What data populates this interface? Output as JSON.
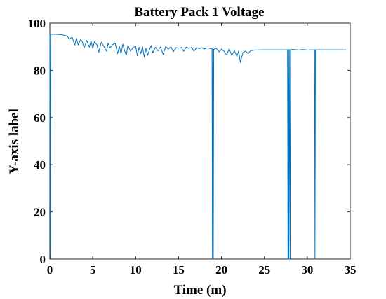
{
  "chart_data": {
    "type": "line",
    "title": "Battery Pack 1 Voltage",
    "xlabel": "Time (m)",
    "ylabel": "Y-axis label",
    "xlim": [
      0,
      35
    ],
    "ylim": [
      0,
      100
    ],
    "xticks": [
      0,
      5,
      10,
      15,
      20,
      25,
      30,
      35
    ],
    "yticks": [
      0,
      20,
      40,
      60,
      80,
      100
    ],
    "grid": false,
    "legend": "none",
    "series_color": "#0072BD",
    "series": [
      {
        "x": [
          0,
          0.05,
          0.1,
          0.5,
          1.0,
          1.5,
          2.0,
          2.3,
          2.6,
          2.9,
          3.1,
          3.3,
          3.6,
          3.8,
          4.0,
          4.3,
          4.6,
          4.8,
          5.0,
          5.2,
          5.5,
          5.7,
          6.0,
          6.3,
          6.6,
          6.8,
          7.0,
          7.3,
          7.6,
          7.9,
          8.1,
          8.3,
          8.5,
          8.7,
          8.9,
          9.1,
          9.4,
          9.7,
          10.0,
          10.2,
          10.4,
          10.6,
          10.8,
          11.0,
          11.2,
          11.4,
          11.6,
          11.8,
          12.0,
          12.3,
          12.6,
          12.9,
          13.2,
          13.5,
          13.8,
          14.1,
          14.4,
          14.7,
          15.0,
          15.3,
          15.6,
          15.9,
          16.2,
          16.5,
          16.8,
          17.1,
          17.4,
          17.7,
          18.0,
          18.3,
          18.6,
          18.9,
          18.95,
          19.0,
          19.05,
          19.1,
          19.4,
          19.7,
          20.0,
          20.3,
          20.6,
          20.9,
          21.2,
          21.5,
          21.8,
          22.0,
          22.2,
          22.5,
          22.8,
          23.1,
          23.4,
          23.7,
          24.0,
          25.0,
          26.0,
          27.0,
          27.7,
          27.75,
          27.8,
          27.85,
          27.9,
          28.0,
          28.05,
          28.1,
          28.5,
          29.0,
          29.5,
          30.0,
          30.5,
          30.85,
          30.9,
          30.95,
          31.0,
          32.0,
          33.0,
          34.0,
          34.5
        ],
        "y": [
          95.0,
          0,
          95.3,
          95.3,
          95.2,
          95.0,
          94.6,
          93.2,
          94.1,
          90.7,
          93.6,
          90.8,
          93.1,
          91.9,
          89.5,
          92.7,
          89.8,
          92.5,
          89.2,
          92.2,
          90.7,
          87.6,
          92.0,
          90.1,
          88.2,
          91.5,
          89.5,
          90.8,
          91.6,
          87.1,
          90.2,
          86.9,
          91.1,
          88.5,
          86.3,
          90.6,
          88.1,
          89.7,
          90.2,
          86.2,
          89.8,
          87.1,
          90.0,
          85.6,
          89.3,
          86.4,
          88.6,
          90.5,
          87.4,
          89.8,
          88.3,
          89.9,
          86.8,
          90.1,
          89.0,
          90.0,
          87.9,
          89.6,
          89.4,
          89.7,
          88.1,
          89.9,
          89.3,
          89.7,
          88.2,
          89.6,
          89.2,
          89.6,
          89.0,
          89.5,
          89.3,
          89.0,
          0,
          89.2,
          0,
          88.9,
          89.4,
          87.8,
          89.0,
          88.1,
          86.5,
          89.1,
          86.2,
          88.4,
          85.9,
          88.2,
          83.4,
          87.5,
          88.2,
          87.1,
          88.3,
          88.5,
          88.6,
          88.7,
          88.7,
          88.7,
          88.7,
          0,
          88.8,
          0,
          88.8,
          0,
          88.7,
          88.8,
          88.8,
          88.6,
          88.8,
          88.6,
          88.7,
          88.7,
          0,
          88.7,
          88.7,
          88.7,
          88.7,
          88.7,
          88.7
        ]
      }
    ]
  }
}
